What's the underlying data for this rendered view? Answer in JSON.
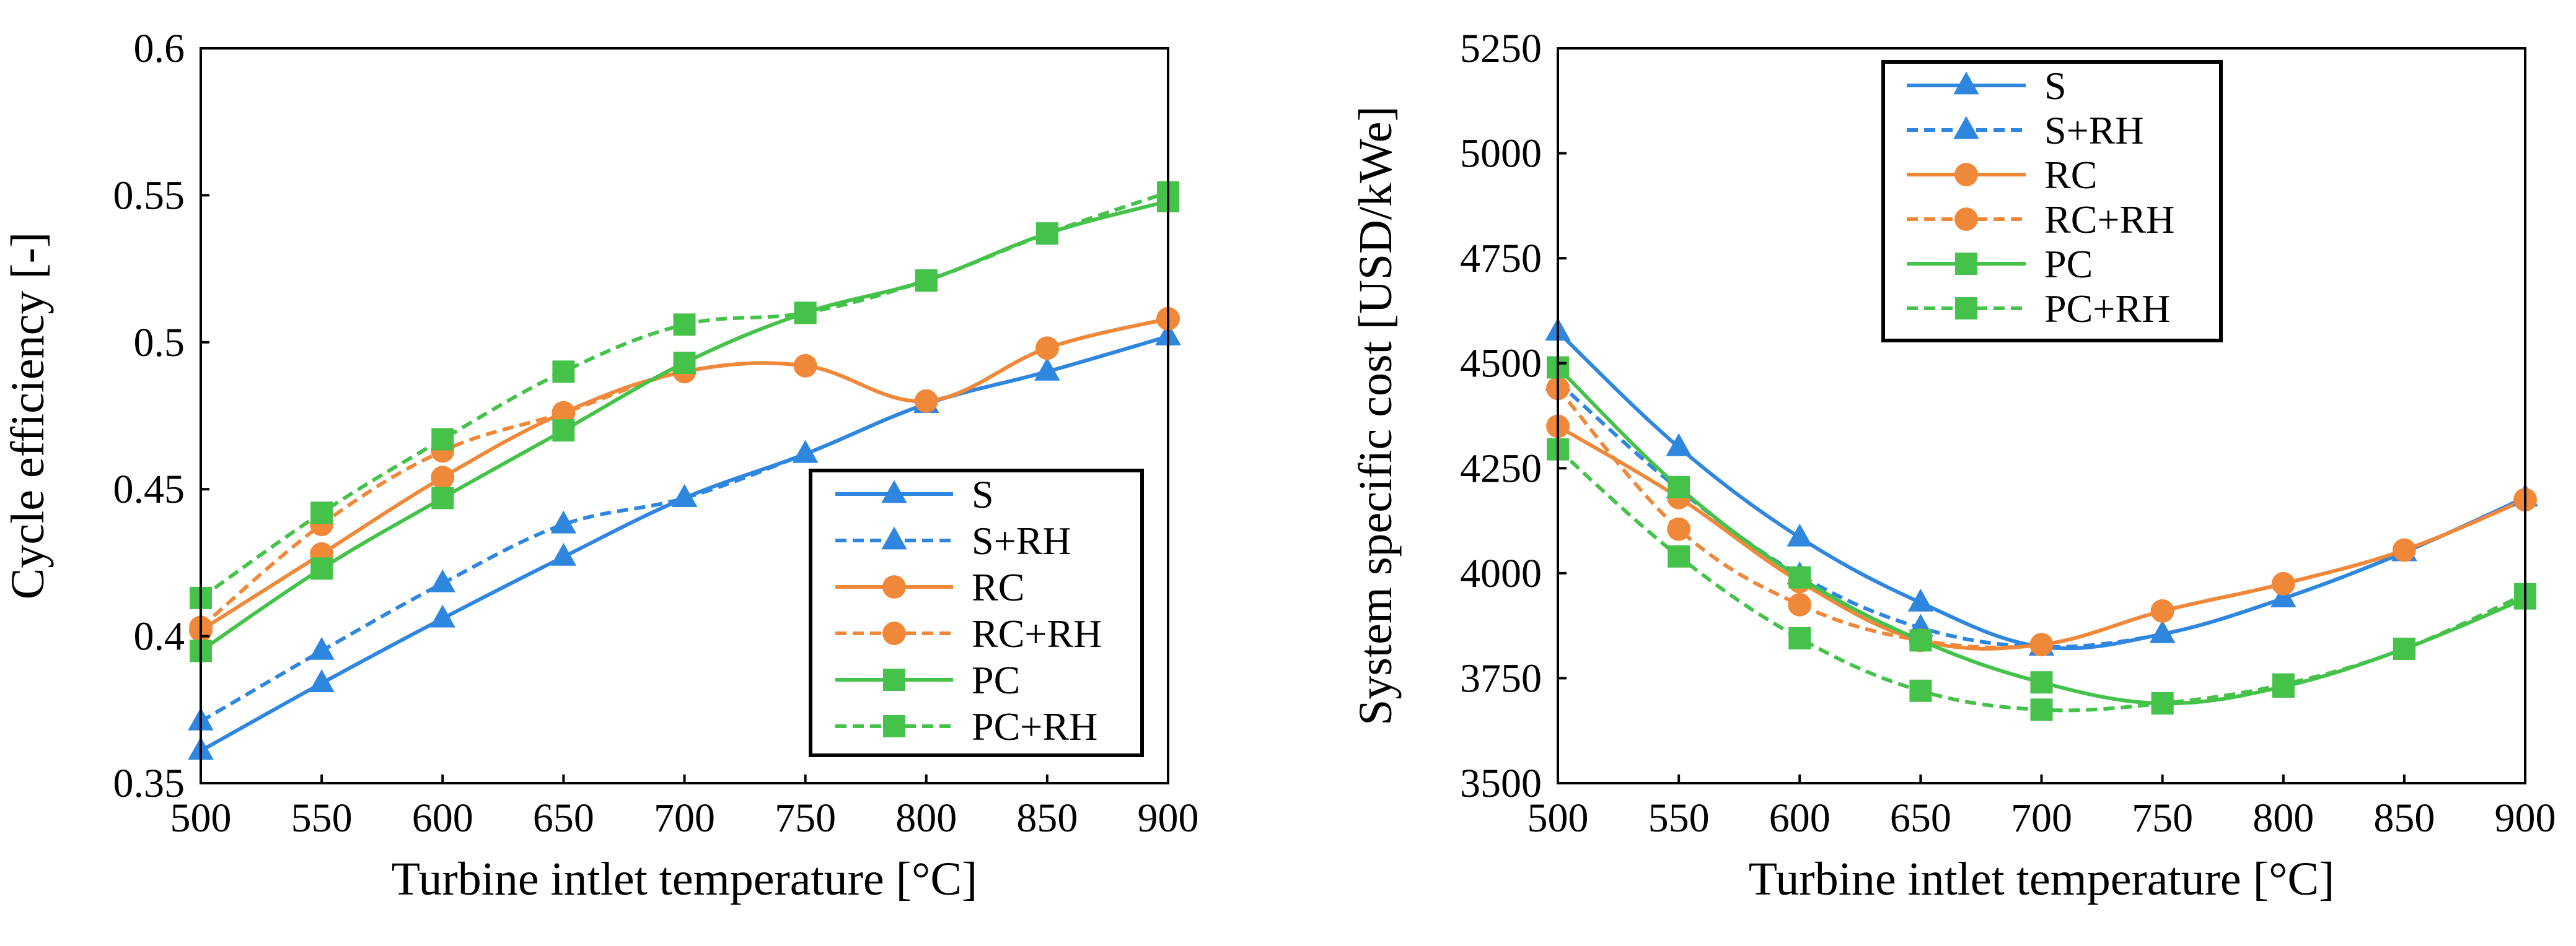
{
  "chart_data": [
    {
      "type": "line",
      "xlabel": "Turbine intlet temperature [°C]",
      "ylabel": "Cycle efficiency [-]",
      "xlim": [
        500,
        900
      ],
      "ylim": [
        0.35,
        0.6
      ],
      "xticks": [
        "500",
        "550",
        "600",
        "650",
        "700",
        "750",
        "800",
        "850",
        "900"
      ],
      "yticks": [
        "0.35",
        "0.4",
        "0.45",
        "0.5",
        "0.55",
        "0.6"
      ],
      "grid": false,
      "legend": "bottom-right",
      "x": [
        500,
        550,
        600,
        650,
        700,
        750,
        800,
        850,
        900
      ],
      "series": [
        {
          "name": "S",
          "color": "#2E86DE",
          "marker": "triangle",
          "dash": false,
          "values": [
            0.361,
            0.384,
            0.406,
            0.427,
            0.447,
            0.462,
            0.479,
            0.49,
            0.502
          ]
        },
        {
          "name": "S+RH",
          "color": "#2E86DE",
          "marker": "triangle",
          "dash": true,
          "values": [
            0.371,
            0.395,
            0.418,
            0.438,
            0.447,
            0.462,
            0.479,
            0.49,
            0.502
          ]
        },
        {
          "name": "RC",
          "color": "#F0883A",
          "marker": "circle",
          "dash": false,
          "values": [
            0.402,
            0.428,
            0.454,
            0.476,
            0.49,
            0.492,
            0.48,
            0.498,
            0.508
          ]
        },
        {
          "name": "RC+RH",
          "color": "#F0883A",
          "marker": "circle",
          "dash": true,
          "values": [
            0.403,
            0.438,
            0.463,
            0.476,
            0.49,
            0.492,
            0.48,
            0.498,
            0.508
          ]
        },
        {
          "name": "PC",
          "color": "#44C24A",
          "marker": "square",
          "dash": false,
          "values": [
            0.395,
            0.423,
            0.447,
            0.47,
            0.493,
            0.51,
            0.521,
            0.537,
            0.548
          ]
        },
        {
          "name": "PC+RH",
          "color": "#44C24A",
          "marker": "square",
          "dash": true,
          "values": [
            0.413,
            0.442,
            0.467,
            0.49,
            0.506,
            0.51,
            0.521,
            0.537,
            0.551
          ]
        }
      ]
    },
    {
      "type": "line",
      "xlabel": "Turbine intlet temperature [°C]",
      "ylabel": "System specific cost [USD/kWe]",
      "xlim": [
        500,
        900
      ],
      "ylim": [
        3500,
        5250
      ],
      "xticks": [
        "500",
        "550",
        "600",
        "650",
        "700",
        "750",
        "800",
        "850",
        "900"
      ],
      "yticks": [
        "3500",
        "3750",
        "4000",
        "4250",
        "4500",
        "4750",
        "5000",
        "5250"
      ],
      "grid": false,
      "legend": "top-center",
      "x": [
        500,
        550,
        600,
        650,
        700,
        750,
        800,
        850,
        900
      ],
      "series": [
        {
          "name": "S",
          "color": "#2E86DE",
          "marker": "triangle",
          "dash": false,
          "values": [
            4575,
            4300,
            4085,
            3930,
            3825,
            3855,
            3940,
            4050,
            4180
          ]
        },
        {
          "name": "S+RH",
          "color": "#2E86DE",
          "marker": "triangle",
          "dash": true,
          "values": [
            4455,
            4200,
            3995,
            3870,
            3825,
            3855,
            3940,
            4050,
            4180
          ]
        },
        {
          "name": "RC",
          "color": "#F0883A",
          "marker": "circle",
          "dash": false,
          "values": [
            4350,
            4180,
            3980,
            3840,
            3830,
            3910,
            3975,
            4055,
            4175
          ]
        },
        {
          "name": "RC+RH",
          "color": "#F0883A",
          "marker": "circle",
          "dash": true,
          "values": [
            4440,
            4105,
            3925,
            3840,
            3830,
            3910,
            3975,
            4055,
            4175
          ]
        },
        {
          "name": "PC",
          "color": "#44C24A",
          "marker": "square",
          "dash": false,
          "values": [
            4490,
            4205,
            3990,
            3840,
            3740,
            3690,
            3730,
            3820,
            3940
          ]
        },
        {
          "name": "PC+RH",
          "color": "#44C24A",
          "marker": "square",
          "dash": true,
          "values": [
            4295,
            4040,
            3845,
            3720,
            3675,
            3690,
            3735,
            3820,
            3950
          ]
        }
      ]
    }
  ]
}
